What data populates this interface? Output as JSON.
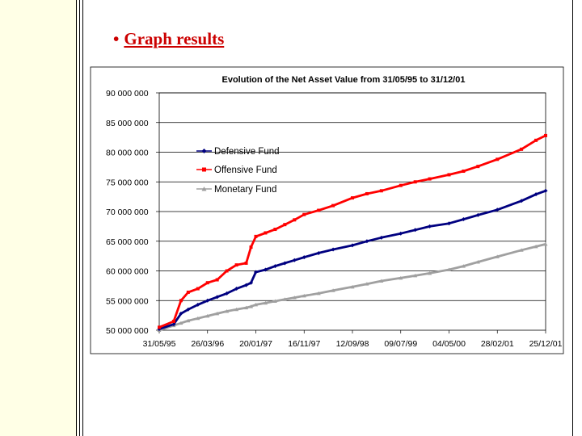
{
  "slide": {
    "bullet": "•",
    "title": "Graph results",
    "colors": {
      "title": "#cc0000",
      "left_band": "#ffffe6"
    }
  },
  "chart_data": {
    "type": "line",
    "title": "Evolution of the Net Asset Value from 31/05/95 to 31/12/01",
    "xlabel": "",
    "ylabel": "",
    "x_tick_labels": [
      "31/05/95",
      "26/03/96",
      "20/01/97",
      "16/11/97",
      "12/09/98",
      "09/07/99",
      "04/05/00",
      "28/02/01",
      "25/12/01"
    ],
    "y_tick_labels": [
      "50 000 000",
      "55 000 000",
      "60 000 000",
      "65 000 000",
      "70 000 000",
      "75 000 000",
      "80 000 000",
      "85 000 000",
      "90 000 000"
    ],
    "ylim": [
      50000000,
      90000000
    ],
    "xlim": [
      0,
      8
    ],
    "grid": "horizontal",
    "legend_position": "upper-left",
    "x": [
      0,
      0.3,
      0.45,
      0.6,
      0.8,
      1.0,
      1.2,
      1.4,
      1.6,
      1.8,
      1.9,
      2.0,
      2.2,
      2.4,
      2.6,
      2.8,
      3.0,
      3.3,
      3.6,
      4.0,
      4.3,
      4.6,
      5.0,
      5.3,
      5.6,
      6.0,
      6.3,
      6.6,
      7.0,
      7.5,
      7.8,
      8.0
    ],
    "series": [
      {
        "name": "Defensive Fund",
        "color": "#000080",
        "marker": "diamond",
        "values": [
          50200000,
          51000000,
          52800000,
          53500000,
          54300000,
          55000000,
          55600000,
          56200000,
          57000000,
          57600000,
          58000000,
          59800000,
          60200000,
          60800000,
          61300000,
          61800000,
          62300000,
          63000000,
          63600000,
          64300000,
          65000000,
          65600000,
          66300000,
          66900000,
          67500000,
          68000000,
          68700000,
          69400000,
          70300000,
          71800000,
          72900000,
          73500000
        ]
      },
      {
        "name": "Offensive Fund",
        "color": "#ff0000",
        "marker": "square",
        "values": [
          50500000,
          51500000,
          55000000,
          56400000,
          57000000,
          58000000,
          58500000,
          60000000,
          61000000,
          61300000,
          64000000,
          65800000,
          66400000,
          67000000,
          67800000,
          68600000,
          69500000,
          70200000,
          71000000,
          72300000,
          73000000,
          73500000,
          74400000,
          75000000,
          75500000,
          76200000,
          76800000,
          77600000,
          78800000,
          80500000,
          82000000,
          82800000
        ]
      },
      {
        "name": "Monetary Fund",
        "color": "#a0a0a0",
        "marker": "triangle",
        "values": [
          50000000,
          50800000,
          51200000,
          51600000,
          52000000,
          52400000,
          52800000,
          53200000,
          53500000,
          53800000,
          54000000,
          54300000,
          54600000,
          54900000,
          55200000,
          55500000,
          55800000,
          56200000,
          56700000,
          57300000,
          57800000,
          58300000,
          58800000,
          59200000,
          59600000,
          60200000,
          60800000,
          61500000,
          62400000,
          63500000,
          64100000,
          64500000
        ]
      }
    ]
  }
}
